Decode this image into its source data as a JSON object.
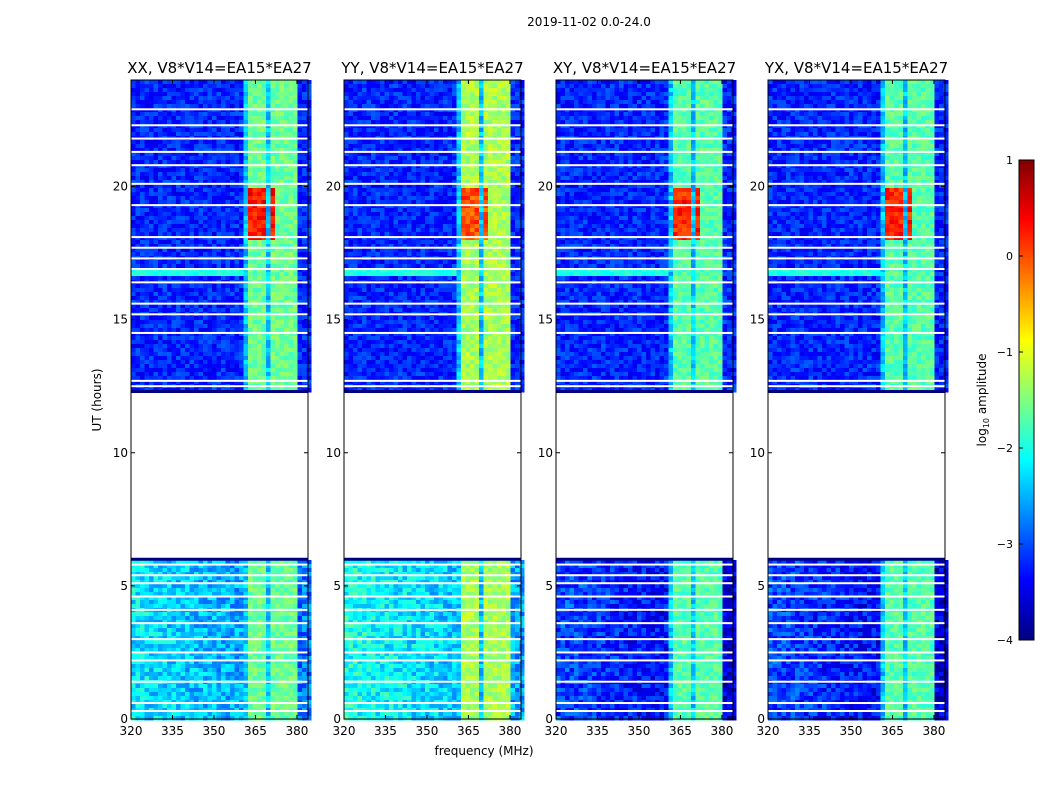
{
  "chart_data": {
    "type": "heatmap",
    "title": "2019-11-02 0.0-24.0",
    "xlabel": "frequency (MHz)",
    "ylabel": "UT (hours)",
    "xlim": [
      320,
      384
    ],
    "ylim": [
      0,
      24
    ],
    "xticks": [
      "320",
      "335",
      "350",
      "365",
      "380"
    ],
    "yticks": [
      "0",
      "5",
      "10",
      "15",
      "20"
    ],
    "colorbar": {
      "label": "log",
      "label_sub": "10",
      "label_rest": " amplitude",
      "range": [
        -4,
        1
      ],
      "ticks": [
        "1",
        "0",
        "−1",
        "−2",
        "−3",
        "−4"
      ],
      "colors": [
        "#00007f",
        "#0000ff",
        "#007fff",
        "#00ffff",
        "#7fff7f",
        "#ffff00",
        "#ff7f00",
        "#ff0000",
        "#7f0000"
      ]
    },
    "panels": [
      {
        "title": "XX, V8*V14=EA15*EA27",
        "band_start_mhz": 360,
        "band_level": -1.6,
        "rfi_level": 0.3,
        "low_band_level": -2.2
      },
      {
        "title": "YY, V8*V14=EA15*EA27",
        "band_start_mhz": 360,
        "band_level": -1.3,
        "rfi_level": 0.0,
        "low_band_level": -2.0
      },
      {
        "title": "XY, V8*V14=EA15*EA27",
        "band_start_mhz": 361,
        "band_level": -1.7,
        "rfi_level": 0.2,
        "low_band_level": -3.0
      },
      {
        "title": "YX, V8*V14=EA15*EA27",
        "band_start_mhz": 361,
        "band_level": -1.7,
        "rfi_level": 0.2,
        "low_band_level": -3.0
      }
    ],
    "gap_hours": [
      6.0,
      12.3
    ],
    "flag_hours": [
      0.3,
      0.6,
      1.4,
      2.2,
      2.5,
      3.0,
      3.6,
      4.1,
      4.6,
      5.1,
      5.4,
      5.8,
      12.5,
      12.7,
      14.5,
      15.2,
      15.6,
      16.4,
      16.9,
      17.3,
      17.7,
      18.1,
      19.3,
      20.1,
      20.8,
      21.3,
      21.8,
      22.3,
      22.9
    ]
  }
}
